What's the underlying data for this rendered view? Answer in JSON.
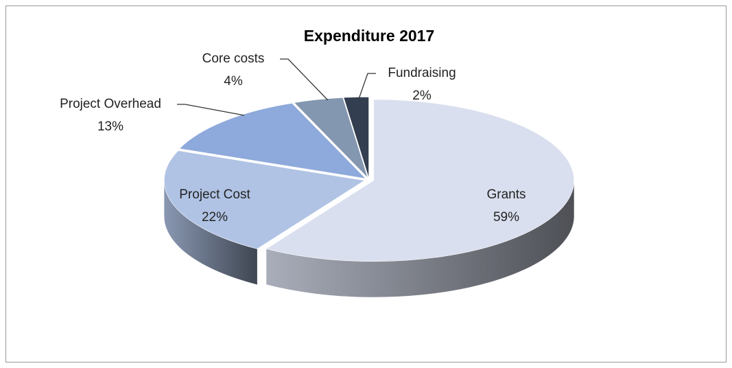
{
  "chart_data": {
    "type": "pie",
    "title": "Expenditure 2017",
    "categories": [
      "Grants",
      "Project Cost",
      "Project Overhead",
      "Core costs",
      "Fundraising"
    ],
    "values": [
      59,
      22,
      13,
      4,
      2
    ],
    "value_labels": [
      "59%",
      "22%",
      "13%",
      "4%",
      "2%"
    ],
    "colors": [
      "#d9dfee",
      "#b0c3e4",
      "#8ea9db",
      "#8497b0",
      "#333f50"
    ]
  }
}
